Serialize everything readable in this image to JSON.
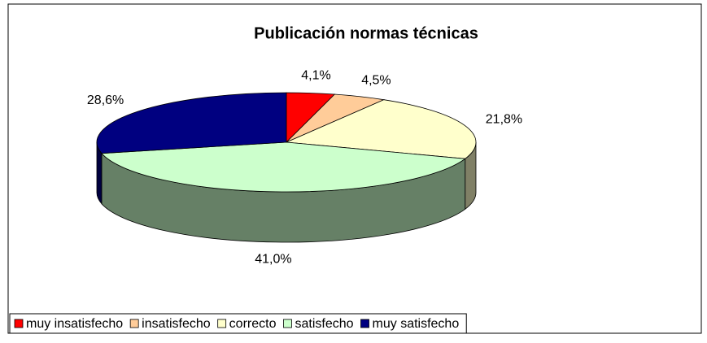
{
  "chart_data": {
    "type": "pie3d",
    "title": "Publicación normas técnicas",
    "categories": [
      "muy insatisfecho",
      "insatisfecho",
      "correcto",
      "satisfecho",
      "muy satisfecho"
    ],
    "values": [
      4.1,
      4.5,
      21.8,
      41.0,
      28.6
    ],
    "value_labels": [
      "4,1%",
      "4,5%",
      "21,8%",
      "41,0%",
      "28,6%"
    ],
    "colors": [
      "#ff0000",
      "#ffcc99",
      "#ffffcc",
      "#ccffcc",
      "#000080"
    ],
    "legend": "bottom"
  }
}
